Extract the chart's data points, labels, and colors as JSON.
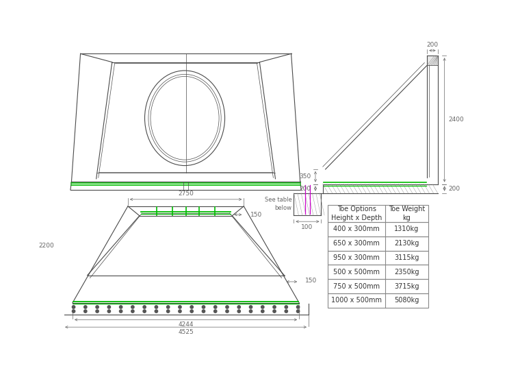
{
  "bg_color": "#ffffff",
  "line_color": "#4a4a4a",
  "green_color": "#00bb00",
  "magenta_color": "#cc00cc",
  "dim_color": "#666666",
  "table_rows": [
    [
      "400 x 300mm",
      "1310kg"
    ],
    [
      "650 x 300mm",
      "2130kg"
    ],
    [
      "950 x 300mm",
      "3115kg"
    ],
    [
      "500 x 500mm",
      "2350kg"
    ],
    [
      "750 x 500mm",
      "3715kg"
    ],
    [
      "1000 x 500mm",
      "5080kg"
    ]
  ],
  "font_size_dim": 6.5,
  "font_size_table": 7.0,
  "lw_main": 0.8,
  "lw_thin": 0.5,
  "lw_dim": 0.5
}
